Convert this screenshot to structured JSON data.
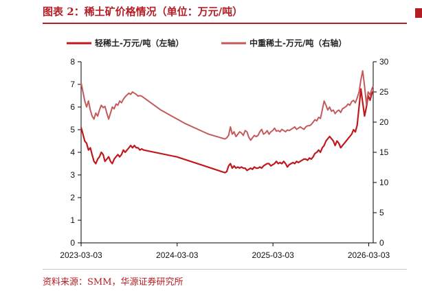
{
  "header": {
    "title": "图表 2：稀土矿价格情况（单位：万元/吨）"
  },
  "footer": {
    "source": "资料来源：SMM，华源证券研究所"
  },
  "colors": {
    "accent": "#b51d24",
    "light_series": "#c0181d",
    "heavy_series": "#c4595b"
  },
  "chart_data": {
    "type": "line",
    "title": "图表 2：稀土矿价格情况（单位：万元/吨）",
    "xlabel": "",
    "ylabel": "",
    "legend_position": "top",
    "grid": false,
    "x_ticks": [
      "2023-03-03",
      "2024-03-03",
      "2025-03-03",
      "2026-03-03"
    ],
    "x_range": [
      "2023-03-03",
      "2026-03-20"
    ],
    "ylim_left": [
      0,
      8
    ],
    "yticks_left": [
      0,
      1,
      2,
      3,
      4,
      5,
      6,
      7,
      8
    ],
    "ylim_right": [
      0,
      30
    ],
    "yticks_right": [
      0,
      5,
      10,
      15,
      20,
      25,
      30
    ],
    "series": [
      {
        "name": "轻稀土-万元/吨（左轴）",
        "axis": "left",
        "x": [
          "2023-03-03",
          "2023-03-10",
          "2023-03-17",
          "2023-03-24",
          "2023-03-31",
          "2023-04-07",
          "2023-04-14",
          "2023-04-21",
          "2023-04-28",
          "2023-05-05",
          "2023-05-12",
          "2023-05-19",
          "2023-05-26",
          "2023-06-02",
          "2023-06-09",
          "2023-06-16",
          "2023-06-23",
          "2023-06-30",
          "2023-07-07",
          "2023-07-14",
          "2023-07-21",
          "2023-07-28",
          "2023-08-04",
          "2023-08-11",
          "2023-08-18",
          "2023-08-25",
          "2023-09-01",
          "2023-09-08",
          "2023-09-15",
          "2023-09-22",
          "2023-09-29",
          "2023-10-06",
          "2023-10-13",
          "2023-10-20",
          "2023-10-27",
          "2024-03-01",
          "2024-06-01",
          "2024-09-01",
          "2024-09-08",
          "2024-09-15",
          "2024-09-22",
          "2024-09-29",
          "2024-10-06",
          "2024-10-13",
          "2024-10-20",
          "2024-10-27",
          "2024-11-03",
          "2024-11-10",
          "2024-11-17",
          "2024-11-24",
          "2024-12-01",
          "2024-12-08",
          "2024-12-15",
          "2024-12-22",
          "2024-12-29",
          "2025-01-05",
          "2025-01-12",
          "2025-01-19",
          "2025-01-26",
          "2025-02-02",
          "2025-02-09",
          "2025-02-16",
          "2025-02-23",
          "2025-03-02",
          "2025-03-09",
          "2025-03-16",
          "2025-03-23",
          "2025-03-30",
          "2025-04-06",
          "2025-04-13",
          "2025-04-20",
          "2025-04-27",
          "2025-05-04",
          "2025-05-11",
          "2025-05-18",
          "2025-05-25",
          "2025-06-01",
          "2025-06-08",
          "2025-06-15",
          "2025-06-22",
          "2025-06-29",
          "2025-07-06",
          "2025-07-13",
          "2025-07-20",
          "2025-07-27",
          "2025-08-03",
          "2025-08-10",
          "2025-08-17",
          "2025-08-24",
          "2025-08-31",
          "2025-09-07",
          "2025-09-14",
          "2025-09-21",
          "2025-09-28",
          "2025-10-05",
          "2025-10-12",
          "2025-10-19",
          "2025-10-26",
          "2025-11-02",
          "2025-11-09",
          "2025-11-16",
          "2025-11-23",
          "2025-11-30",
          "2025-12-07",
          "2025-12-14",
          "2025-12-21",
          "2025-12-28",
          "2026-01-04",
          "2026-01-11",
          "2026-01-18",
          "2026-01-25",
          "2026-02-01",
          "2026-02-08",
          "2026-02-15",
          "2026-02-22",
          "2026-03-01",
          "2026-03-08",
          "2026-03-15",
          "2026-03-20"
        ],
        "values": [
          5.1,
          4.8,
          4.5,
          4.4,
          4.1,
          4.2,
          3.9,
          3.6,
          3.5,
          3.7,
          3.8,
          4.0,
          3.9,
          3.6,
          3.7,
          3.8,
          3.6,
          3.5,
          3.7,
          3.8,
          3.9,
          3.8,
          3.9,
          4.1,
          4.0,
          4.1,
          4.2,
          4.3,
          4.2,
          4.3,
          4.2,
          4.2,
          4.1,
          4.15,
          4.1,
          3.8,
          3.45,
          3.1,
          3.15,
          3.4,
          3.5,
          3.3,
          3.4,
          3.3,
          3.35,
          3.3,
          3.35,
          3.3,
          3.3,
          3.2,
          3.25,
          3.3,
          3.25,
          3.35,
          3.3,
          3.3,
          3.35,
          3.3,
          3.4,
          3.45,
          3.5,
          3.5,
          3.4,
          3.45,
          3.5,
          3.6,
          3.5,
          3.55,
          3.5,
          3.6,
          3.5,
          3.35,
          3.45,
          3.5,
          3.55,
          3.5,
          3.6,
          3.55,
          3.6,
          3.65,
          3.7,
          3.7,
          3.65,
          3.75,
          3.7,
          3.8,
          3.95,
          4.0,
          4.1,
          4.0,
          4.2,
          4.3,
          4.5,
          4.6,
          4.7,
          4.6,
          4.5,
          4.3,
          4.5,
          4.4,
          4.2,
          4.3,
          4.4,
          4.5,
          4.6,
          4.7,
          4.8,
          5.0,
          4.9,
          5.2,
          6.0,
          6.8,
          6.2,
          5.6,
          6.0,
          6.5,
          6.3,
          6.6,
          6.7
        ]
      },
      {
        "name": "中重稀土-万元/吨（右轴）",
        "axis": "right",
        "x": [
          "2023-03-03",
          "2023-03-10",
          "2023-03-17",
          "2023-03-24",
          "2023-03-31",
          "2023-04-07",
          "2023-04-14",
          "2023-04-21",
          "2023-04-28",
          "2023-05-05",
          "2023-05-12",
          "2023-05-19",
          "2023-05-26",
          "2023-06-02",
          "2023-06-09",
          "2023-06-16",
          "2023-06-23",
          "2023-06-30",
          "2023-07-07",
          "2023-07-14",
          "2023-07-21",
          "2023-07-28",
          "2023-08-04",
          "2023-08-11",
          "2023-08-18",
          "2023-08-25",
          "2023-09-01",
          "2023-09-08",
          "2023-09-15",
          "2023-09-22",
          "2023-09-29",
          "2023-10-06",
          "2023-10-13",
          "2023-10-20",
          "2024-01-01",
          "2024-04-01",
          "2024-07-01",
          "2024-09-01",
          "2024-09-08",
          "2024-09-15",
          "2024-09-22",
          "2024-09-29",
          "2024-10-06",
          "2024-10-13",
          "2024-10-20",
          "2024-10-27",
          "2024-11-03",
          "2024-11-10",
          "2024-11-17",
          "2024-11-24",
          "2024-12-01",
          "2024-12-08",
          "2024-12-15",
          "2024-12-22",
          "2024-12-29",
          "2025-01-05",
          "2025-01-12",
          "2025-01-19",
          "2025-01-26",
          "2025-02-02",
          "2025-02-09",
          "2025-02-16",
          "2025-02-23",
          "2025-03-02",
          "2025-03-09",
          "2025-03-16",
          "2025-03-23",
          "2025-03-30",
          "2025-04-06",
          "2025-04-13",
          "2025-04-20",
          "2025-04-27",
          "2025-05-04",
          "2025-05-11",
          "2025-05-18",
          "2025-05-25",
          "2025-06-01",
          "2025-06-08",
          "2025-06-15",
          "2025-06-22",
          "2025-06-29",
          "2025-07-06",
          "2025-07-13",
          "2025-07-20",
          "2025-07-27",
          "2025-08-03",
          "2025-08-10",
          "2025-08-17",
          "2025-08-24",
          "2025-08-31",
          "2025-09-07",
          "2025-09-14",
          "2025-09-21",
          "2025-09-28",
          "2025-10-05",
          "2025-10-12",
          "2025-10-19",
          "2025-10-26",
          "2025-11-02",
          "2025-11-09",
          "2025-11-16",
          "2025-11-23",
          "2025-11-30",
          "2025-12-07",
          "2025-12-14",
          "2025-12-21",
          "2025-12-28",
          "2026-01-04",
          "2026-01-11",
          "2026-01-18",
          "2026-01-25",
          "2026-02-01",
          "2026-02-08",
          "2026-02-15",
          "2026-02-22",
          "2026-03-01",
          "2026-03-08",
          "2026-03-15",
          "2026-03-20"
        ],
        "values": [
          26.5,
          25.0,
          23.5,
          22.5,
          23.5,
          22.0,
          21.0,
          20.5,
          21.5,
          21.0,
          22.0,
          22.8,
          22.4,
          22.6,
          21.5,
          20.5,
          21.5,
          22.5,
          22.2,
          23.0,
          22.8,
          23.5,
          23.2,
          23.8,
          24.2,
          24.5,
          24.8,
          24.6,
          25.0,
          24.8,
          24.6,
          24.3,
          24.4,
          24.3,
          22.0,
          19.8,
          18.0,
          17.2,
          17.4,
          17.8,
          19.2,
          18.0,
          18.4,
          17.6,
          18.0,
          18.4,
          18.2,
          17.8,
          18.6,
          18.4,
          17.5,
          17.0,
          17.4,
          17.8,
          17.6,
          17.8,
          18.4,
          18.8,
          18.0,
          18.2,
          18.6,
          18.0,
          18.4,
          18.6,
          19.0,
          18.5,
          18.6,
          18.4,
          18.8,
          18.6,
          18.4,
          18.7,
          18.6,
          18.8,
          19.0,
          19.2,
          18.8,
          19.0,
          19.2,
          19.0,
          18.8,
          19.2,
          19.4,
          19.4,
          19.6,
          20.0,
          20.4,
          20.2,
          20.8,
          20.6,
          22.0,
          23.5,
          22.8,
          22.0,
          22.5,
          21.8,
          22.0,
          21.4,
          21.8,
          22.0,
          21.6,
          22.2,
          22.4,
          22.6,
          23.0,
          22.8,
          23.4,
          23.6,
          23.2,
          24.0,
          25.0,
          27.0,
          28.5,
          26.0,
          23.0,
          25.0,
          24.5,
          25.5,
          26.0
        ]
      }
    ]
  }
}
